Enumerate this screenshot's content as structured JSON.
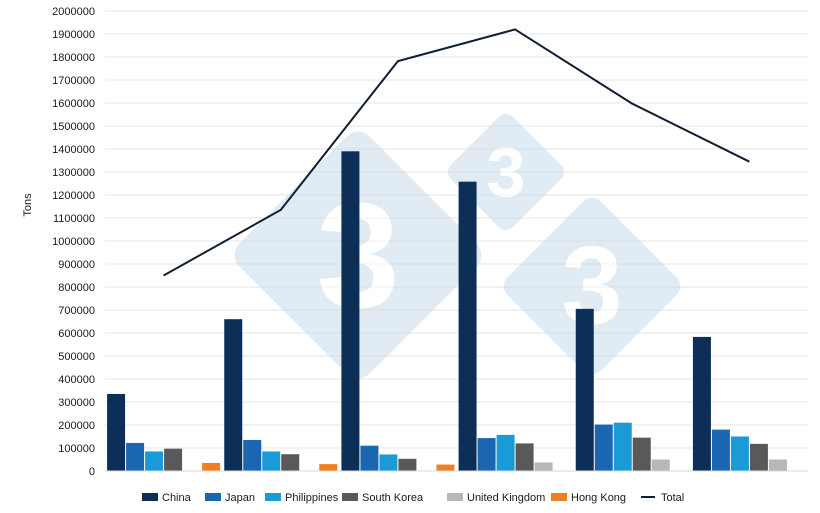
{
  "chart_data": {
    "type": "bar",
    "title": "",
    "ylabel": "Tons",
    "xlabel": "",
    "ylim": [
      0,
      2000000
    ],
    "ytick_step": 100000,
    "grid": true,
    "legend_position": "bottom",
    "categories": [
      "",
      "",
      "",
      "",
      "",
      ""
    ],
    "series": [
      {
        "name": "China",
        "type": "bar",
        "color": "#0d2f57",
        "values": [
          335000,
          660000,
          1390000,
          1258000,
          705000,
          583000
        ]
      },
      {
        "name": "Japan",
        "type": "bar",
        "color": "#1a66b0",
        "values": [
          122000,
          135000,
          110000,
          143000,
          202000,
          180000
        ]
      },
      {
        "name": "Philippines",
        "type": "bar",
        "color": "#1a9ad6",
        "values": [
          85000,
          85000,
          72000,
          157000,
          210000,
          150000
        ]
      },
      {
        "name": "South Korea",
        "type": "bar",
        "color": "#595959",
        "values": [
          97000,
          73000,
          53000,
          120000,
          145000,
          118000
        ]
      },
      {
        "name": "United Kingdom",
        "type": "bar",
        "color": "#b7b7b7",
        "values": [
          0,
          0,
          0,
          37000,
          50000,
          50000
        ]
      },
      {
        "name": "Hong Kong",
        "type": "bar",
        "color": "#f07f21",
        "values": [
          35000,
          30000,
          28000,
          0,
          0,
          0
        ]
      },
      {
        "name": "Total",
        "type": "line",
        "color": "#0f1e33",
        "values": [
          850000,
          1135000,
          1782000,
          1920000,
          1597000,
          1345000
        ]
      }
    ]
  }
}
